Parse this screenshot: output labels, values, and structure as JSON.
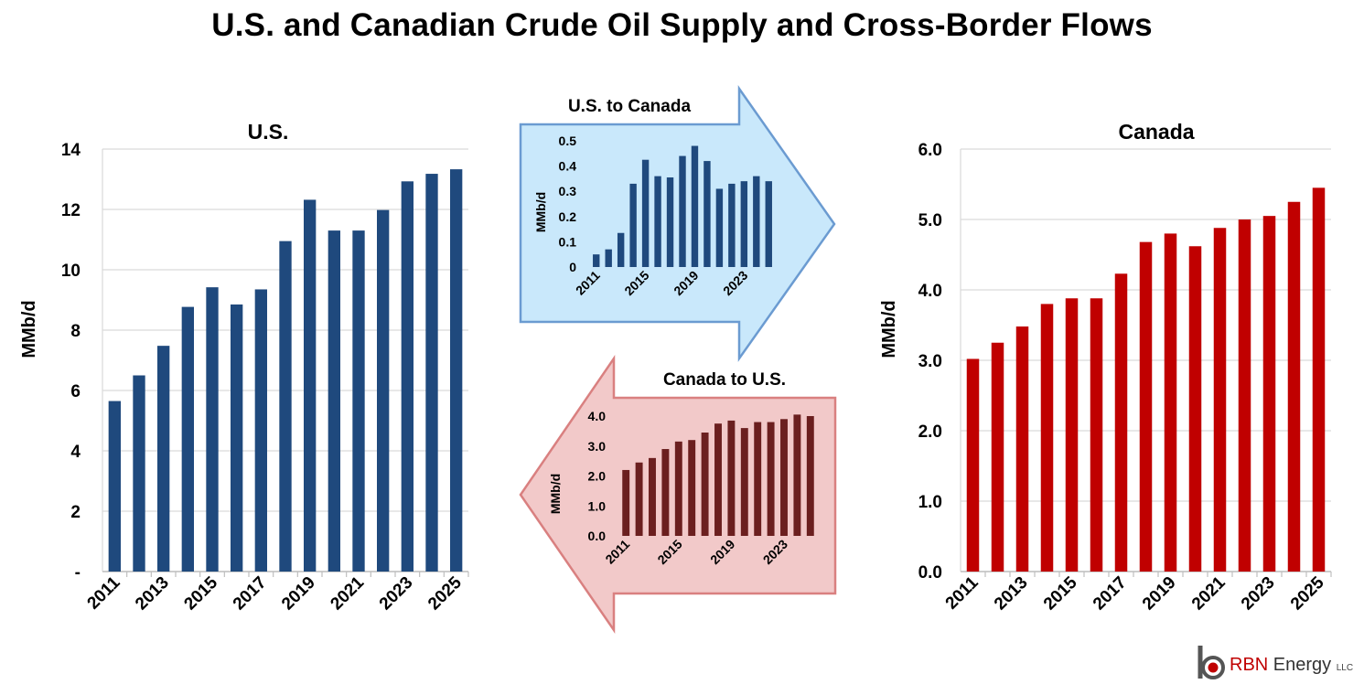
{
  "title": "U.S. and Canadian Crude Oil Supply and Cross-Border Flows",
  "logo": {
    "brand": "RBN",
    "word": "Energy",
    "suffix": "LLC"
  },
  "colors": {
    "us": "#1f497d",
    "canada": "#c00000",
    "us_to_canada": "#1f497d",
    "canada_to_us": "#6b1f1f",
    "arrow_blue_fill": "#c9e8fb",
    "arrow_blue_stroke": "#6b9bd1",
    "arrow_red_fill": "#f2c9c9",
    "arrow_red_stroke": "#d98080"
  },
  "chart_data": [
    {
      "id": "us",
      "type": "bar",
      "title": "U.S.",
      "ylabel": "MMb/d",
      "ylim": [
        0,
        14
      ],
      "yticks": [
        "-",
        "2",
        "4",
        "6",
        "8",
        "10",
        "12",
        "14"
      ],
      "x": [
        2011,
        2012,
        2013,
        2014,
        2015,
        2016,
        2017,
        2018,
        2019,
        2020,
        2021,
        2022,
        2023,
        2024,
        2025
      ],
      "xtick_labels": [
        "2011",
        "2013",
        "2015",
        "2017",
        "2019",
        "2021",
        "2023",
        "2025"
      ],
      "values": [
        5.65,
        6.5,
        7.48,
        8.77,
        9.42,
        8.85,
        9.35,
        10.95,
        12.32,
        11.3,
        11.3,
        11.98,
        12.93,
        13.18,
        13.33
      ],
      "grid": true
    },
    {
      "id": "us_to_canada",
      "type": "bar",
      "title": "U.S. to Canada",
      "ylabel": "MMb/d",
      "ylim": [
        0,
        0.5
      ],
      "yticks": [
        "0",
        "0.1",
        "0.2",
        "0.3",
        "0.4",
        "0.5"
      ],
      "x": [
        2011,
        2012,
        2013,
        2014,
        2015,
        2016,
        2017,
        2018,
        2019,
        2020,
        2021,
        2022,
        2023,
        2024,
        2025
      ],
      "xtick_labels": [
        "2011",
        "2015",
        "2019",
        "2023"
      ],
      "values": [
        0.05,
        0.07,
        0.135,
        0.33,
        0.425,
        0.36,
        0.355,
        0.44,
        0.48,
        0.42,
        0.31,
        0.33,
        0.34,
        0.36,
        0.34
      ],
      "grid": false
    },
    {
      "id": "canada_to_us",
      "type": "bar",
      "title": "Canada to U.S.",
      "ylabel": "MMb/d",
      "ylim": [
        0,
        4.0
      ],
      "yticks": [
        "0.0",
        "1.0",
        "2.0",
        "3.0",
        "4.0"
      ],
      "x": [
        2011,
        2012,
        2013,
        2014,
        2015,
        2016,
        2017,
        2018,
        2019,
        2020,
        2021,
        2022,
        2023,
        2024,
        2025
      ],
      "xtick_labels": [
        "2011",
        "2015",
        "2019",
        "2023"
      ],
      "values": [
        2.2,
        2.45,
        2.6,
        2.9,
        3.15,
        3.2,
        3.45,
        3.75,
        3.85,
        3.6,
        3.8,
        3.8,
        3.9,
        4.05,
        4.0
      ],
      "grid": false
    },
    {
      "id": "canada",
      "type": "bar",
      "title": "Canada",
      "ylabel": "MMb/d",
      "ylim": [
        0,
        6
      ],
      "yticks": [
        "0.0",
        "1.0",
        "2.0",
        "3.0",
        "4.0",
        "5.0",
        "6.0"
      ],
      "x": [
        2011,
        2012,
        2013,
        2014,
        2015,
        2016,
        2017,
        2018,
        2019,
        2020,
        2021,
        2022,
        2023,
        2024,
        2025
      ],
      "xtick_labels": [
        "2011",
        "2013",
        "2015",
        "2017",
        "2019",
        "2021",
        "2023",
        "2025"
      ],
      "values": [
        3.02,
        3.25,
        3.48,
        3.8,
        3.88,
        3.88,
        4.23,
        4.68,
        4.8,
        4.62,
        4.88,
        5.0,
        5.05,
        5.25,
        5.45
      ],
      "grid": true
    }
  ]
}
